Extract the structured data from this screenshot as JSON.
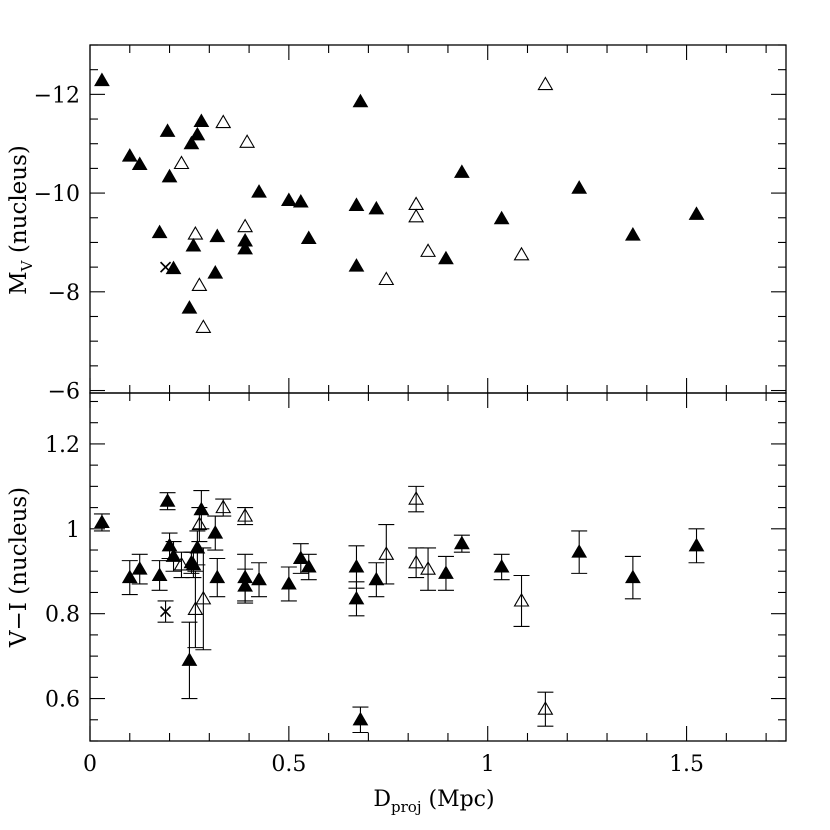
{
  "chart_data": [
    {
      "type": "scatter",
      "panel": "top",
      "ylabel_main": "M",
      "ylabel_sub": "V",
      "ylabel_rest": " (nucleus)",
      "ylim": [
        -5.95,
        -13
      ],
      "yticks": [
        -12,
        -10,
        -8,
        -6
      ],
      "ytick_labels": [
        "−12",
        "−10",
        "−8",
        "−6"
      ],
      "series": [
        {
          "name": "filled triangles",
          "marker": "filled-triangle",
          "points": [
            [
              0.03,
              -12.28
            ],
            [
              0.1,
              -10.75
            ],
            [
              0.125,
              -10.58
            ],
            [
              0.175,
              -9.2
            ],
            [
              0.195,
              -11.25
            ],
            [
              0.2,
              -10.33
            ],
            [
              0.21,
              -8.47
            ],
            [
              0.25,
              -7.67
            ],
            [
              0.255,
              -11.0
            ],
            [
              0.26,
              -8.93
            ],
            [
              0.27,
              -11.18
            ],
            [
              0.28,
              -11.45
            ],
            [
              0.315,
              -8.38
            ],
            [
              0.32,
              -9.12
            ],
            [
              0.39,
              -9.03
            ],
            [
              0.39,
              -8.87
            ],
            [
              0.425,
              -10.02
            ],
            [
              0.5,
              -9.85
            ],
            [
              0.53,
              -9.82
            ],
            [
              0.55,
              -9.08
            ],
            [
              0.67,
              -8.52
            ],
            [
              0.67,
              -9.75
            ],
            [
              0.68,
              -11.85
            ],
            [
              0.72,
              -9.68
            ],
            [
              0.895,
              -8.67
            ],
            [
              0.935,
              -10.42
            ],
            [
              1.035,
              -9.48
            ],
            [
              1.23,
              -10.1
            ],
            [
              1.365,
              -9.15
            ],
            [
              1.525,
              -9.57
            ]
          ]
        },
        {
          "name": "open triangles",
          "marker": "open-triangle",
          "points": [
            [
              0.23,
              -10.6
            ],
            [
              0.265,
              -9.17
            ],
            [
              0.275,
              -8.13
            ],
            [
              0.285,
              -7.28
            ],
            [
              0.335,
              -11.43
            ],
            [
              0.39,
              -9.32
            ],
            [
              0.395,
              -11.03
            ],
            [
              0.745,
              -8.25
            ],
            [
              0.82,
              -9.77
            ],
            [
              0.82,
              -9.52
            ],
            [
              0.85,
              -8.82
            ],
            [
              1.085,
              -8.75
            ],
            [
              1.145,
              -12.2
            ]
          ]
        },
        {
          "name": "cross",
          "marker": "cross",
          "points": [
            [
              0.19,
              -8.5
            ]
          ]
        }
      ]
    },
    {
      "type": "scatter",
      "panel": "bottom",
      "ylabel": "V−I (nucleus)",
      "xlabel_main": "D",
      "xlabel_sub": "proj",
      "xlabel_rest": " (Mpc)",
      "xlim": [
        0,
        1.75
      ],
      "xticks": [
        0,
        0.5,
        1,
        1.5
      ],
      "xtick_labels": [
        "0",
        "0.5",
        "1",
        "1.5"
      ],
      "ylim": [
        0.5,
        1.32
      ],
      "yticks": [
        0.6,
        0.8,
        1,
        1.2
      ],
      "ytick_labels": [
        "0.6",
        "0.8",
        "1",
        "1.2"
      ],
      "series": [
        {
          "name": "filled triangles",
          "marker": "filled-triangle",
          "points": [
            [
              0.03,
              1.015,
              0.02
            ],
            [
              0.1,
              0.885,
              0.04
            ],
            [
              0.125,
              0.905,
              0.035
            ],
            [
              0.175,
              0.89,
              0.035
            ],
            [
              0.195,
              1.065,
              0.02
            ],
            [
              0.2,
              0.96,
              0.03
            ],
            [
              0.21,
              0.935,
              0.035
            ],
            [
              0.25,
              0.69,
              0.09
            ],
            [
              0.255,
              0.92,
              0.025
            ],
            [
              0.26,
              0.915,
              0.03
            ],
            [
              0.27,
              0.955,
              0.04
            ],
            [
              0.28,
              1.045,
              0.045
            ],
            [
              0.315,
              0.99,
              0.04
            ],
            [
              0.32,
              0.885,
              0.045
            ],
            [
              0.39,
              0.885,
              0.055
            ],
            [
              0.39,
              0.865,
              0.04
            ],
            [
              0.425,
              0.88,
              0.04
            ],
            [
              0.5,
              0.87,
              0.04
            ],
            [
              0.53,
              0.93,
              0.035
            ],
            [
              0.55,
              0.91,
              0.03
            ],
            [
              0.67,
              0.91,
              0.05
            ],
            [
              0.67,
              0.835,
              0.04
            ],
            [
              0.68,
              0.55,
              0.03
            ],
            [
              0.72,
              0.88,
              0.04
            ],
            [
              0.895,
              0.895,
              0.04
            ],
            [
              0.935,
              0.965,
              0.02
            ],
            [
              1.035,
              0.91,
              0.03
            ],
            [
              1.23,
              0.945,
              0.05
            ],
            [
              1.365,
              0.885,
              0.05
            ],
            [
              1.525,
              0.96,
              0.04
            ]
          ]
        },
        {
          "name": "open triangles",
          "marker": "open-triangle",
          "points": [
            [
              0.23,
              0.915,
              0.03
            ],
            [
              0.265,
              0.81,
              0.09
            ],
            [
              0.275,
              1.01,
              0.04
            ],
            [
              0.285,
              0.835,
              0.12
            ],
            [
              0.335,
              1.05,
              0.02
            ],
            [
              0.39,
              1.03,
              0.02
            ],
            [
              0.745,
              0.94,
              0.07
            ],
            [
              0.82,
              1.07,
              0.03
            ],
            [
              0.82,
              0.92,
              0.035
            ],
            [
              0.85,
              0.905,
              0.05
            ],
            [
              1.085,
              0.83,
              0.06
            ],
            [
              1.145,
              0.575,
              0.04
            ]
          ]
        },
        {
          "name": "cross",
          "marker": "cross",
          "points": [
            [
              0.19,
              0.805,
              0.025
            ]
          ]
        }
      ]
    }
  ]
}
